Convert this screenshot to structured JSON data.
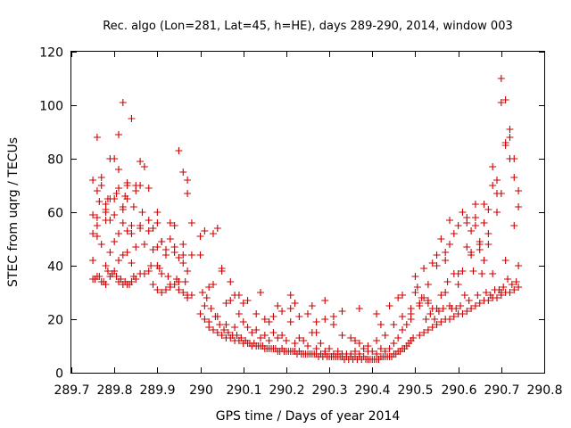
{
  "chart_data": {
    "type": "scatter",
    "title": "Rec. algo (Lon=281, Lat=45, h=HE), days 289-290, 2014, window 003",
    "xlabel": "GPS time / Days of year 2014",
    "ylabel": "STEC from uqrg / TECUs",
    "xlim": [
      289.7,
      290.8
    ],
    "ylim": [
      0,
      120
    ],
    "xticks": [
      "289.7",
      "289.8",
      "289.9",
      "290",
      "290.1",
      "290.2",
      "290.3",
      "290.4",
      "290.5",
      "290.6",
      "290.7",
      "290.8"
    ],
    "yticks": [
      "0",
      "20",
      "40",
      "60",
      "80",
      "100",
      "120"
    ],
    "grid": false,
    "marker": "+",
    "color": "#cc0000",
    "series": [
      {
        "x": [
          289.75,
          289.75,
          289.75,
          289.75,
          289.76,
          289.76,
          289.76,
          289.77,
          289.77,
          289.77,
          289.78,
          289.78,
          289.78,
          289.79,
          289.79,
          289.79,
          289.8,
          289.8,
          289.8,
          289.81,
          289.81,
          289.81,
          289.82,
          289.82,
          289.82,
          289.83,
          289.83,
          289.83,
          289.84,
          289.84,
          289.84,
          289.85,
          289.85,
          289.86,
          289.86,
          289.86,
          289.87,
          289.87,
          289.88,
          289.88,
          289.89,
          289.89,
          289.9,
          289.9,
          289.91,
          289.91,
          289.92,
          289.92,
          289.93,
          289.93,
          289.94,
          289.94,
          289.95,
          289.95,
          289.96,
          289.96,
          289.97,
          289.97,
          289.98,
          289.98,
          289.755,
          289.765,
          289.775,
          289.785,
          289.795,
          289.805,
          289.815,
          289.825,
          289.835,
          289.845,
          289.76,
          289.78,
          289.8,
          289.82,
          289.84,
          289.86,
          289.88,
          289.9,
          289.92,
          289.94,
          289.96,
          289.765,
          289.785,
          289.805,
          289.825,
          289.845,
          289.865,
          289.885,
          289.905,
          289.925,
          289.945,
          289.965,
          289.77,
          289.79,
          289.81,
          289.83,
          289.85,
          289.87,
          289.89,
          289.91,
          289.93,
          289.95,
          289.97,
          289.76,
          289.8,
          289.81,
          289.82,
          289.84,
          289.95,
          289.97,
          289.78,
          289.83,
          289.86,
          289.88,
          289.9,
          289.93,
          289.96,
          289.78,
          289.82,
          289.91,
          289.94,
          289.97,
          289.79,
          289.76,
          289.81,
          289.75,
          289.83,
          289.85,
          289.9,
          289.95,
          289.96,
          289.98,
          290.0,
          290.0,
          290.01,
          290.01,
          290.02,
          290.02,
          290.03,
          290.03,
          290.04,
          290.04,
          290.05,
          290.05,
          290.06,
          290.06,
          290.07,
          290.07,
          290.08,
          290.08,
          290.09,
          290.09,
          290.1,
          290.1,
          290.11,
          290.11,
          290.12,
          290.12,
          290.13,
          290.13,
          290.14,
          290.14,
          290.15,
          290.15,
          290.16,
          290.16,
          290.17,
          290.17,
          290.18,
          290.18,
          290.19,
          290.19,
          290.2,
          290.2,
          290.21,
          290.21,
          290.22,
          290.22,
          290.23,
          290.23,
          290.24,
          290.24,
          290.25,
          290.25,
          290.26,
          290.26,
          290.27,
          290.27,
          290.28,
          290.28,
          290.29,
          290.29,
          290.3,
          290.3,
          290.31,
          290.31,
          290.32,
          290.32,
          290.33,
          290.33,
          290.34,
          290.34,
          290.35,
          290.35,
          290.36,
          290.36,
          290.37,
          290.37,
          290.38,
          290.38,
          290.39,
          290.39,
          290.4,
          290.4,
          290.41,
          290.41,
          290.42,
          290.42,
          290.43,
          290.43,
          290.44,
          290.44,
          290.45,
          290.45,
          290.46,
          290.46,
          290.47,
          290.47,
          290.48,
          290.48,
          290.49,
          290.49,
          290.005,
          290.015,
          290.025,
          290.035,
          290.045,
          290.055,
          290.065,
          290.075,
          290.085,
          290.095,
          290.105,
          290.115,
          290.125,
          290.135,
          290.145,
          290.155,
          290.165,
          290.175,
          290.185,
          290.195,
          290.205,
          290.215,
          290.225,
          290.235,
          290.245,
          290.255,
          290.265,
          290.275,
          290.285,
          290.295,
          290.305,
          290.315,
          290.325,
          290.335,
          290.345,
          290.355,
          290.365,
          290.375,
          290.385,
          290.395,
          290.405,
          290.415,
          290.425,
          290.435,
          290.445,
          290.455,
          290.465,
          290.475,
          290.485,
          290.495,
          290.01,
          290.03,
          290.05,
          290.07,
          290.09,
          290.11,
          290.13,
          290.15,
          290.17,
          290.19,
          290.21,
          290.23,
          290.25,
          290.27,
          290.29,
          290.31,
          290.33,
          290.35,
          290.37,
          290.39,
          290.41,
          290.43,
          290.45,
          290.47,
          290.49,
          290.02,
          290.06,
          290.08,
          290.14,
          290.18,
          290.21,
          290.26,
          290.29,
          290.33,
          290.36,
          290.41,
          290.44,
          290.47,
          290.0,
          290.04,
          290.1,
          290.16,
          290.22,
          290.27,
          290.31,
          290.37,
          290.42,
          290.46,
          290.49,
          290.5,
          290.5,
          290.51,
          290.51,
          290.52,
          290.52,
          290.53,
          290.53,
          290.54,
          290.54,
          290.55,
          290.55,
          290.56,
          290.56,
          290.57,
          290.57,
          290.58,
          290.58,
          290.59,
          290.59,
          290.6,
          290.6,
          290.61,
          290.61,
          290.62,
          290.62,
          290.63,
          290.63,
          290.64,
          290.64,
          290.65,
          290.65,
          290.66,
          290.66,
          290.67,
          290.67,
          290.68,
          290.68,
          290.69,
          290.69,
          290.7,
          290.7,
          290.71,
          290.71,
          290.72,
          290.72,
          290.73,
          290.73,
          290.74,
          290.74,
          290.505,
          290.515,
          290.525,
          290.535,
          290.545,
          290.555,
          290.565,
          290.575,
          290.585,
          290.595,
          290.605,
          290.615,
          290.625,
          290.635,
          290.645,
          290.655,
          290.665,
          290.675,
          290.685,
          290.695,
          290.705,
          290.715,
          290.725,
          290.735,
          290.51,
          290.53,
          290.55,
          290.57,
          290.59,
          290.61,
          290.63,
          290.65,
          290.67,
          290.69,
          290.71,
          290.73,
          290.52,
          290.56,
          290.6,
          290.64,
          290.68,
          290.72,
          290.54,
          290.58,
          290.62,
          290.66,
          290.7,
          290.74,
          290.55,
          290.6,
          290.63,
          290.65,
          290.66,
          290.68,
          290.69,
          290.7,
          290.7,
          290.71,
          290.71,
          290.72,
          290.73,
          290.74,
          290.62,
          290.67,
          290.58,
          290.53,
          290.57,
          290.64
        ],
        "y": [
          35,
          42,
          52,
          72,
          36,
          55,
          68,
          34,
          48,
          73,
          33,
          40,
          60,
          36,
          45,
          57,
          38,
          49,
          65,
          34,
          42,
          69,
          33,
          44,
          61,
          33,
          45,
          53,
          34,
          41,
          52,
          35,
          47,
          37,
          55,
          70,
          37,
          48,
          38,
          57,
          33,
          46,
          31,
          40,
          30,
          49,
          31,
          44,
          32,
          50,
          33,
          47,
          31,
          43,
          30,
          41,
          28,
          38,
          29,
          44,
          35,
          36,
          34,
          38,
          37,
          36,
          35,
          34,
          33,
          36,
          58,
          57,
          59,
          56,
          55,
          54,
          53,
          47,
          46,
          45,
          44,
          64,
          65,
          67,
          66,
          62,
          60,
          40,
          39,
          36,
          35,
          34,
          70,
          80,
          76,
          70,
          68,
          77,
          54,
          37,
          33,
          31,
          29,
          88,
          80,
          89,
          101,
          95,
          83,
          72,
          61,
          71,
          79,
          69,
          60,
          56,
          48,
          63,
          62,
          49,
          55,
          67,
          65,
          51,
          52,
          59,
          65,
          70,
          56,
          34,
          75,
          56,
          22,
          44,
          20,
          25,
          17,
          19,
          16,
          33,
          15,
          21,
          14,
          38,
          13,
          18,
          13,
          27,
          12,
          17,
          12,
          22,
          11,
          19,
          11,
          17,
          10,
          15,
          10,
          16,
          10,
          13,
          9,
          14,
          9,
          12,
          9,
          15,
          8,
          13,
          9,
          14,
          8,
          12,
          8,
          19,
          8,
          11,
          8,
          13,
          7,
          12,
          7,
          10,
          7,
          15,
          7,
          9,
          7,
          11,
          7,
          8,
          6,
          9,
          6,
          7,
          6,
          8,
          6,
          7,
          6,
          7,
          6,
          7,
          6,
          8,
          6,
          7,
          6,
          9,
          5,
          8,
          5,
          8,
          5,
          7,
          6,
          9,
          6,
          8,
          6,
          9,
          7,
          11,
          8,
          13,
          9,
          16,
          10,
          18,
          12,
          20,
          30,
          28,
          24,
          21,
          18,
          16,
          15,
          14,
          14,
          13,
          12,
          11,
          11,
          10,
          10,
          9,
          9,
          9,
          8,
          8,
          8,
          8,
          7,
          7,
          7,
          7,
          7,
          6,
          6,
          6,
          6,
          6,
          6,
          5,
          5,
          5,
          5,
          5,
          5,
          5,
          5,
          5,
          6,
          6,
          6,
          7,
          8,
          9,
          11,
          13,
          53,
          52,
          39,
          34,
          29,
          27,
          22,
          20,
          21,
          23,
          24,
          21,
          22,
          19,
          20,
          18,
          14,
          13,
          11,
          10,
          12,
          14,
          18,
          21,
          24,
          32,
          26,
          29,
          30,
          25,
          29,
          25,
          27,
          23,
          12,
          22,
          25,
          29,
          51,
          54,
          26,
          19,
          26,
          15,
          21,
          24,
          18,
          28,
          22,
          36,
          30,
          14,
          25,
          15,
          28,
          16,
          33,
          17,
          24,
          18,
          44,
          19,
          29,
          20,
          42,
          20,
          25,
          21,
          37,
          22,
          33,
          22,
          60,
          23,
          47,
          24,
          53,
          25,
          58,
          26,
          49,
          27,
          56,
          27,
          61,
          28,
          70,
          28,
          67,
          29,
          101,
          30,
          86,
          30,
          91,
          31,
          73,
          32,
          62,
          32,
          28,
          20,
          22,
          20,
          23,
          24,
          34,
          24,
          24,
          25,
          29,
          27,
          38,
          29,
          37,
          30,
          29,
          31,
          31,
          32,
          35,
          33,
          34,
          26,
          27,
          24,
          45,
          52,
          38,
          44,
          46,
          48,
          72,
          42,
          80,
          39,
          50,
          55,
          63,
          77,
          88,
          41,
          48,
          56,
          63,
          67,
          68,
          40,
          37,
          45,
          48,
          42,
          37,
          60,
          110,
          30,
          102,
          85,
          80,
          55,
          40,
          58,
          52,
          57,
          26,
          30,
          55
        ]
      }
    ]
  }
}
